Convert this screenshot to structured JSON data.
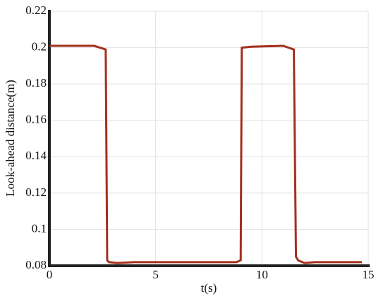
{
  "chart_data": {
    "type": "line",
    "xlabel": "t(s)",
    "ylabel": "Look-ahead distance(m)",
    "x": [
      0,
      2.1,
      2.65,
      2.72,
      2.8,
      3.2,
      4,
      8.8,
      9.0,
      9.05,
      9.5,
      11.0,
      11.5,
      11.6,
      11.7,
      12.0,
      12.5,
      14.7
    ],
    "series": [
      {
        "color": "#a3301c",
        "values": [
          0.201,
          0.201,
          0.199,
          0.083,
          0.082,
          0.0815,
          0.082,
          0.082,
          0.083,
          0.2,
          0.2005,
          0.201,
          0.199,
          0.085,
          0.083,
          0.0815,
          0.082,
          0.082
        ]
      }
    ],
    "xlim": [
      0,
      15
    ],
    "xticks": [
      0,
      5,
      10,
      15
    ],
    "ylim": [
      0.08,
      0.22
    ],
    "yticks": [
      0.08,
      0.1,
      0.12,
      0.14,
      0.16,
      0.18,
      0.2,
      0.22
    ],
    "grid": true
  }
}
